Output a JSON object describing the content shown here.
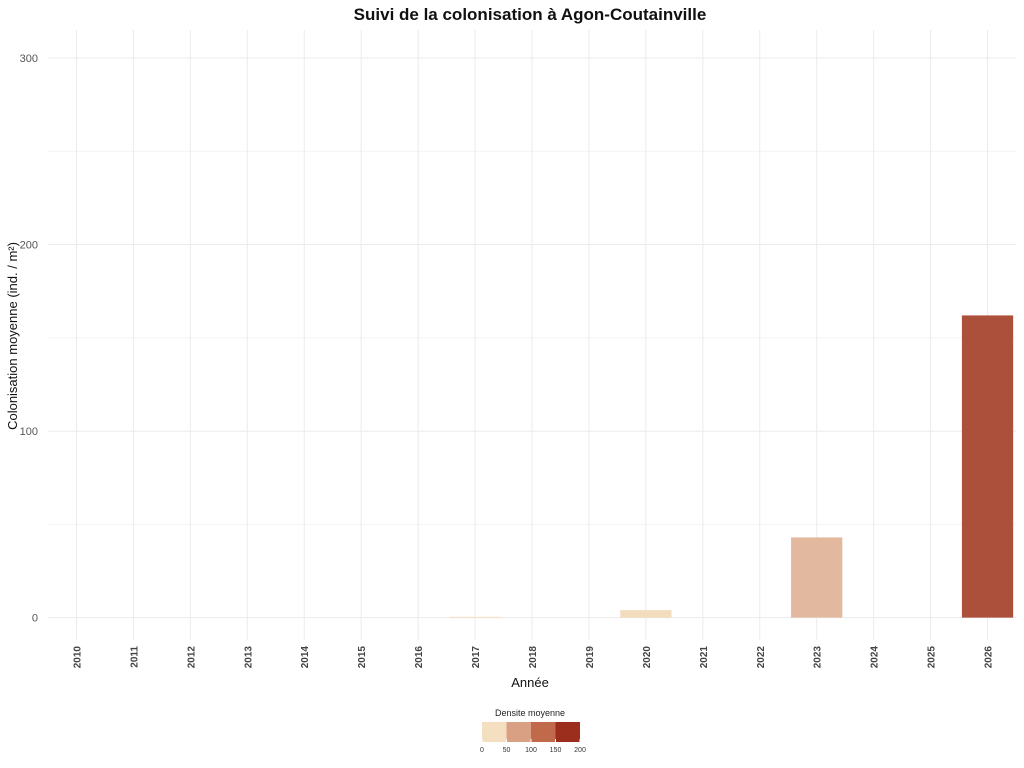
{
  "chart_data": {
    "type": "bar",
    "title": "Suivi de la colonisation à Agon-Coutainville",
    "xlabel": "Année",
    "ylabel": "Colonisation moyenne (ind. / m²)",
    "categories": [
      "2010",
      "2011",
      "2012",
      "2013",
      "2014",
      "2015",
      "2016",
      "2017",
      "2018",
      "2019",
      "2020",
      "2021",
      "2022",
      "2023",
      "2024",
      "2025",
      "2026"
    ],
    "values": [
      0,
      0,
      0,
      0,
      0,
      0,
      0,
      0.4,
      0,
      0,
      4,
      0,
      0,
      43,
      0,
      0,
      162
    ],
    "ylim": [
      -12,
      315
    ],
    "yticks": [
      0,
      100,
      200,
      300
    ],
    "grid": true,
    "legend": {
      "title": "Densite moyenne",
      "position": "bottom",
      "ticks": [
        "0",
        "50",
        "100",
        "150",
        "200"
      ],
      "colors": [
        "#f5dfc1",
        "#d9a084",
        "#c0694b",
        "#9b2e1c"
      ],
      "range": [
        0,
        200
      ]
    },
    "color_low": "#f5dfc1",
    "color_high": "#9b2e1c"
  }
}
